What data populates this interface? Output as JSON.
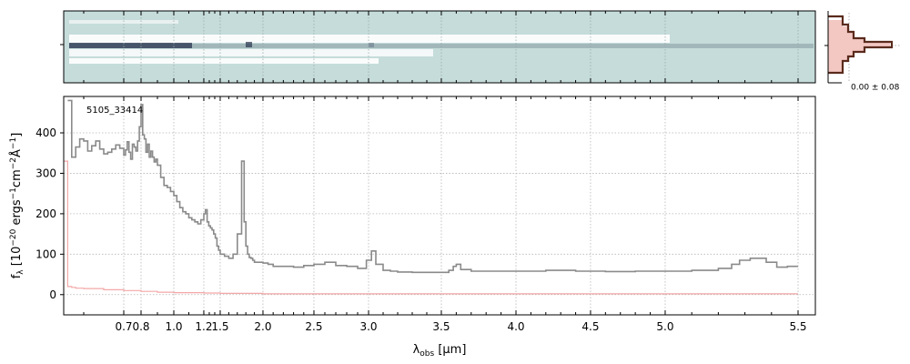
{
  "chart_data": [
    {
      "type": "heatmap",
      "panel": "2d-spectrum",
      "colormap": [
        "#c5dcda",
        "#ffffff",
        "#9ab0b4",
        "#2a3450"
      ],
      "grid": true
    },
    {
      "type": "line",
      "panel": "1d-spectrum",
      "annotation": "5105_33414",
      "xlabel": "λobs [μm]",
      "ylabel": "fλ [10−20 ergs−1cm−2Å−1]",
      "xlabel_parts": {
        "lambda": "λ",
        "sub": "obs",
        "unit": " [μm]"
      },
      "ylabel_parts": {
        "f": "f",
        "f_sub": "λ",
        "pre": " [10",
        "exp1": "−20",
        "mid1": " ergs",
        "exp2": "−1",
        "mid2": "cm",
        "exp3": "−2",
        "mid3": "Å",
        "exp4": "−1",
        "post": "]"
      },
      "xticks": [
        "0.7",
        "0.8",
        "1.0",
        "1.2",
        "1.5",
        "2.0",
        "2.5",
        "3.0",
        "3.5",
        "4.0",
        "4.5",
        "5.0",
        "5.5"
      ],
      "xtick_values": [
        0.7,
        0.8,
        1.0,
        1.2,
        1.5,
        2.0,
        2.5,
        3.0,
        3.5,
        4.0,
        4.5,
        5.0,
        5.5
      ],
      "yticks": [
        "0",
        "100",
        "200",
        "300",
        "400"
      ],
      "ytick_values": [
        0,
        100,
        200,
        300,
        400
      ],
      "xlim": [
        0.55,
        5.52
      ],
      "ylim": [
        -50,
        490
      ],
      "grid": true,
      "series": [
        {
          "color": "#8a8a8a",
          "x": [
            0.56,
            0.57,
            0.58,
            0.59,
            0.6,
            0.61,
            0.62,
            0.63,
            0.64,
            0.65,
            0.66,
            0.67,
            0.68,
            0.69,
            0.7,
            0.71,
            0.72,
            0.73,
            0.74,
            0.75,
            0.76,
            0.77,
            0.78,
            0.79,
            0.8,
            0.81,
            0.82,
            0.83,
            0.84,
            0.85,
            0.86,
            0.87,
            0.88,
            0.89,
            0.9,
            0.92,
            0.94,
            0.96,
            0.98,
            1.0,
            1.02,
            1.04,
            1.06,
            1.08,
            1.1,
            1.12,
            1.14,
            1.16,
            1.18,
            1.2,
            1.23,
            1.26,
            1.29,
            1.32,
            1.35,
            1.38,
            1.41,
            1.44,
            1.47,
            1.5,
            1.55,
            1.6,
            1.65,
            1.7,
            1.75,
            1.78,
            1.8,
            1.82,
            1.84,
            1.86,
            1.88,
            1.9,
            1.95,
            2.0,
            2.05,
            2.1,
            2.2,
            2.3,
            2.4,
            2.5,
            2.6,
            2.7,
            2.8,
            2.9,
            2.98,
            3.02,
            3.05,
            3.1,
            3.15,
            3.2,
            3.3,
            3.4,
            3.5,
            3.55,
            3.58,
            3.6,
            3.63,
            3.7,
            3.8,
            3.9,
            4.0,
            4.2,
            4.4,
            4.6,
            4.8,
            5.0,
            5.1,
            5.2,
            5.25,
            5.28,
            5.32,
            5.38,
            5.42,
            5.46,
            5.5
          ],
          "y": [
            480,
            340,
            365,
            385,
            380,
            355,
            368,
            380,
            360,
            348,
            352,
            360,
            370,
            362,
            345,
            358,
            378,
            352,
            335,
            372,
            365,
            355,
            380,
            415,
            470,
            395,
            385,
            352,
            372,
            340,
            355,
            340,
            328,
            335,
            320,
            290,
            270,
            265,
            255,
            245,
            230,
            215,
            205,
            200,
            190,
            185,
            180,
            175,
            185,
            200,
            210,
            180,
            170,
            165,
            160,
            150,
            140,
            120,
            110,
            100,
            95,
            90,
            100,
            150,
            330,
            180,
            120,
            100,
            92,
            90,
            85,
            80,
            80,
            78,
            75,
            70,
            70,
            68,
            72,
            75,
            80,
            72,
            70,
            65,
            85,
            108,
            75,
            60,
            58,
            56,
            55,
            55,
            55,
            60,
            70,
            75,
            62,
            58,
            58,
            58,
            58,
            60,
            58,
            57,
            58,
            58,
            60,
            65,
            75,
            85,
            90,
            80,
            68,
            70,
            70
          ]
        },
        {
          "color": "#f4a7a7",
          "x": [
            0.55,
            0.56,
            0.57,
            0.58,
            0.6,
            0.65,
            0.7,
            0.8,
            0.9,
            1.0,
            1.2,
            1.5,
            2.0,
            3.0,
            4.0,
            5.0,
            5.5
          ],
          "y": [
            330,
            20,
            18,
            16,
            15,
            12,
            10,
            8,
            6,
            5,
            4,
            3,
            2,
            2,
            2,
            2,
            2
          ]
        }
      ]
    },
    {
      "type": "histogram",
      "panel": "pixel-histogram",
      "label": "0.00 ± 0.08",
      "colors": {
        "outline": "#5a2a1c",
        "fill": "#f3c7c2"
      }
    }
  ]
}
